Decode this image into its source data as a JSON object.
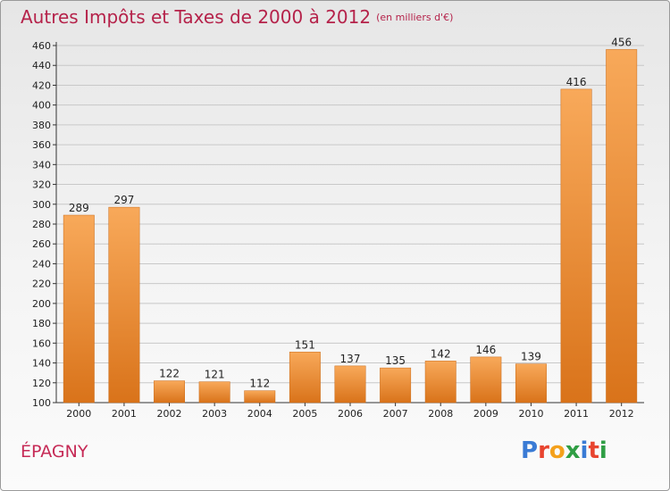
{
  "title": "Autres Impôts et Taxes de 2000 à 2012",
  "subtitle": "(en milliers d'€)",
  "commune": "ÉPAGNY",
  "logo": {
    "text": "Proxiti",
    "colors": [
      "#3a7bd5",
      "#e8442f",
      "#f4a11c",
      "#2f9e44",
      "#3a7bd5",
      "#e8442f",
      "#2f9e44"
    ]
  },
  "colors": {
    "title": "#b5224a",
    "bar_light": "#f8a95a",
    "bar_dark": "#d9731a",
    "grid": "#c8c8c8"
  },
  "chart_data": {
    "type": "bar",
    "categories": [
      "2000",
      "2001",
      "2002",
      "2003",
      "2004",
      "2005",
      "2006",
      "2007",
      "2008",
      "2009",
      "2010",
      "2011",
      "2012"
    ],
    "values": [
      289,
      297,
      122,
      121,
      112,
      151,
      137,
      135,
      142,
      146,
      139,
      416,
      456
    ],
    "ylim": [
      100,
      460
    ],
    "yticks": [
      100,
      120,
      140,
      160,
      180,
      200,
      220,
      240,
      260,
      280,
      300,
      320,
      340,
      360,
      380,
      400,
      420,
      440,
      460
    ],
    "grid": true,
    "data_labels": true
  }
}
